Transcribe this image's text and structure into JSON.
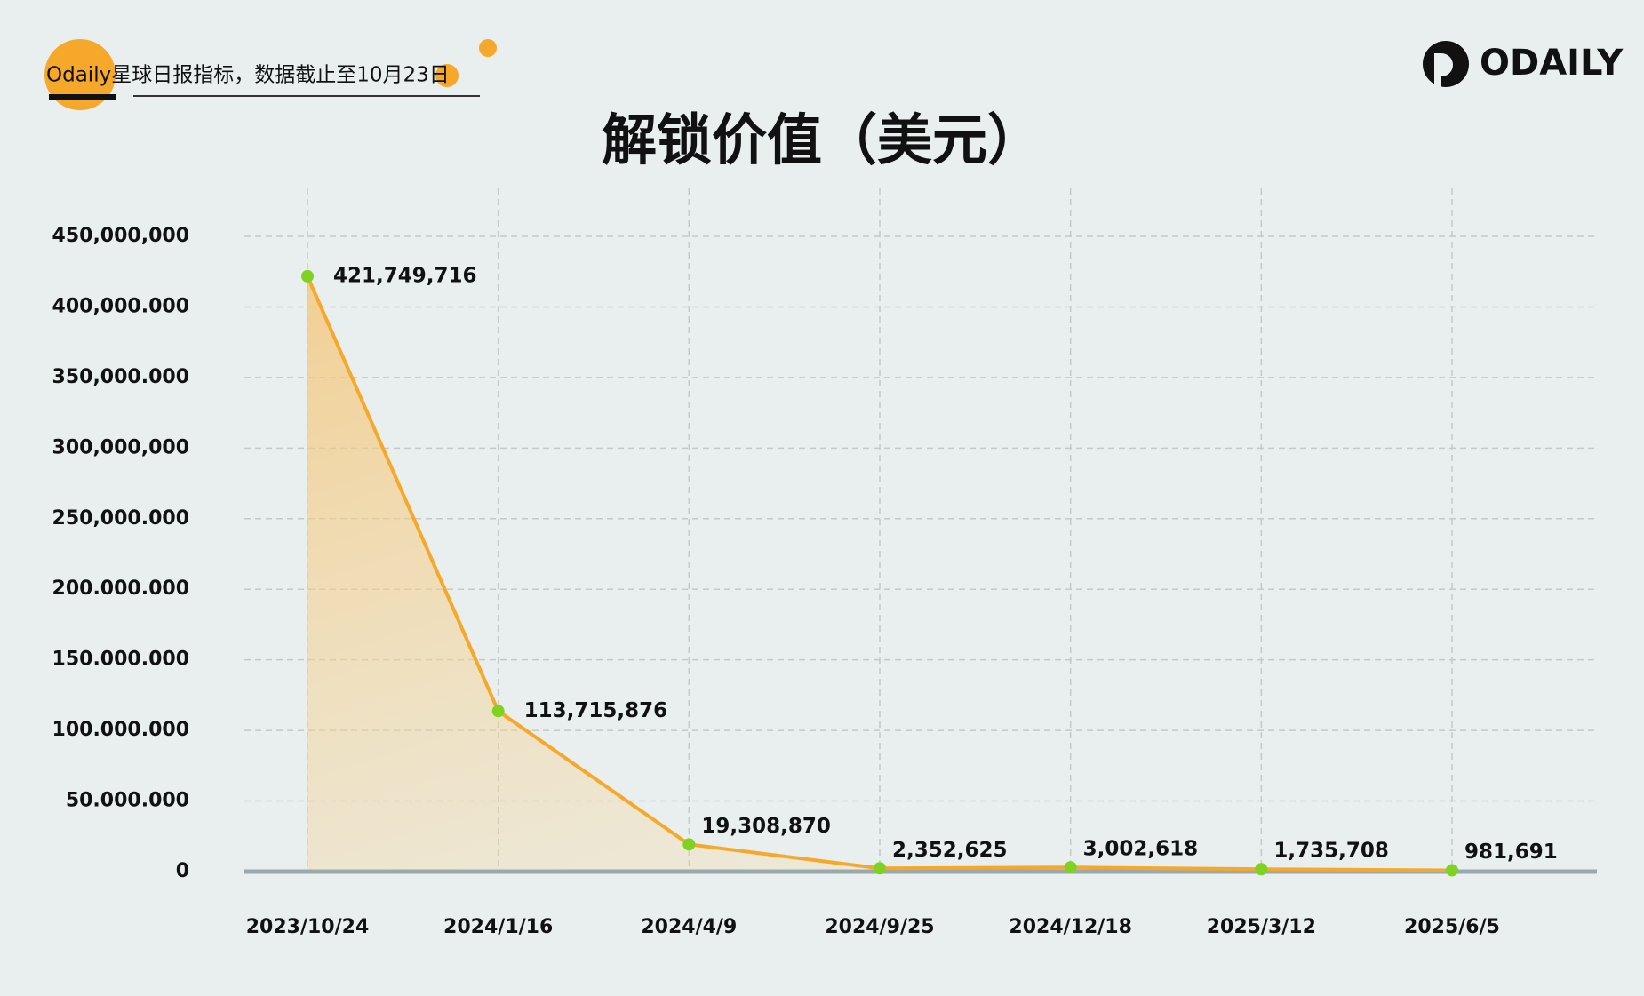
{
  "brand": "ODAILY",
  "chart_data": {
    "type": "line",
    "title": "解锁价值（美元）",
    "subtitle": "Odaily星球日报指标，数据截止至10月23日",
    "categories": [
      "2023/10/24",
      "2024/1/16",
      "2024/4/9",
      "2024/9/25",
      "2024/12/18",
      "2025/3/12",
      "2025/6/5"
    ],
    "values": [
      421749716,
      113715876,
      19308870,
      2352625,
      3002618,
      1735708,
      981691
    ],
    "value_labels": [
      "421,749,716",
      "113,715,876",
      "19,308,870",
      "2,352,625",
      "3,002,618",
      "1,735,708",
      "981,691"
    ],
    "color": "#f5a82a",
    "marker_color": "#7ed321",
    "ylim": [
      0,
      450000000
    ],
    "yticks": [
      0,
      {
        "value": 50000000,
        "label": "50.000.000"
      },
      {
        "value": 100000000,
        "label": "100.000.000"
      },
      {
        "value": 150000000,
        "label": "150.000.000"
      },
      {
        "value": 200000000,
        "label": "200.000.000"
      },
      {
        "value": 250000000,
        "label": "250,000.000"
      },
      {
        "value": 300000000,
        "label": "300,000,000"
      },
      {
        "value": 350000000,
        "label": "350,000.000"
      },
      {
        "value": 400000000,
        "label": "400,000.000"
      },
      {
        "value": 450000000,
        "label": "450,000,000"
      }
    ],
    "grid": true
  }
}
